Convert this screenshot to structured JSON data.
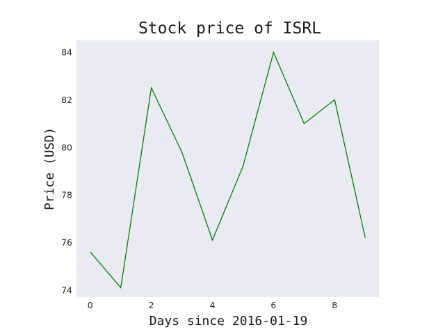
{
  "chart_data": {
    "type": "line",
    "title": "Stock price of ISRL",
    "xlabel": "Days since 2016-01-19",
    "ylabel": "Price (USD)",
    "x": [
      0,
      1,
      2,
      3,
      4,
      5,
      6,
      7,
      8,
      9
    ],
    "series": [
      {
        "values": [
          75.6,
          74.1,
          82.5,
          79.8,
          76.1,
          79.2,
          84.0,
          81.0,
          82.0,
          76.2
        ],
        "color": "#008000"
      }
    ],
    "xlim": [
      -0.45,
      9.45
    ],
    "ylim": [
      73.7,
      84.5
    ],
    "xticks": [
      0,
      2,
      4,
      6,
      8
    ],
    "yticks": [
      74,
      76,
      78,
      80,
      82,
      84
    ],
    "grid": false,
    "plot_background": "#eaeaf2"
  }
}
